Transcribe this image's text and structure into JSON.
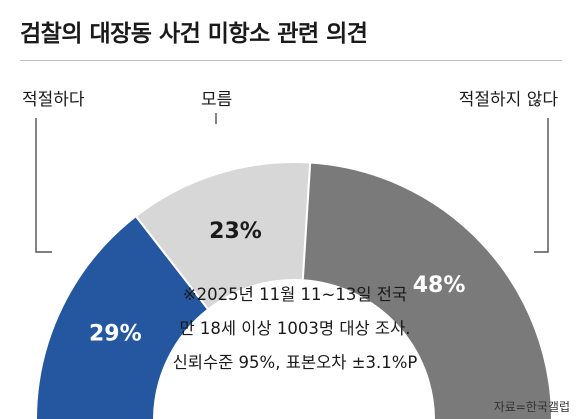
{
  "colors": {
    "agree": "#2457a0",
    "unknown": "#d7d7d7",
    "disagree": "#7a7a7a"
  },
  "chart_data": {
    "type": "pie",
    "title": "검찰의 대장동 사건 미항소 관련 의견",
    "categories": [
      "적절하다",
      "모름",
      "적절하지 않다"
    ],
    "values": [
      29,
      23,
      48
    ],
    "value_labels": [
      "29%",
      "23%",
      "48%"
    ],
    "note": [
      "※2025년 11월 11~13일 전국",
      "만 18세 이상 1003명 대상 조사.",
      "신뢰수준 95%, 표본오차 ±3.1%P"
    ],
    "source": "자료=한국갤럽"
  }
}
